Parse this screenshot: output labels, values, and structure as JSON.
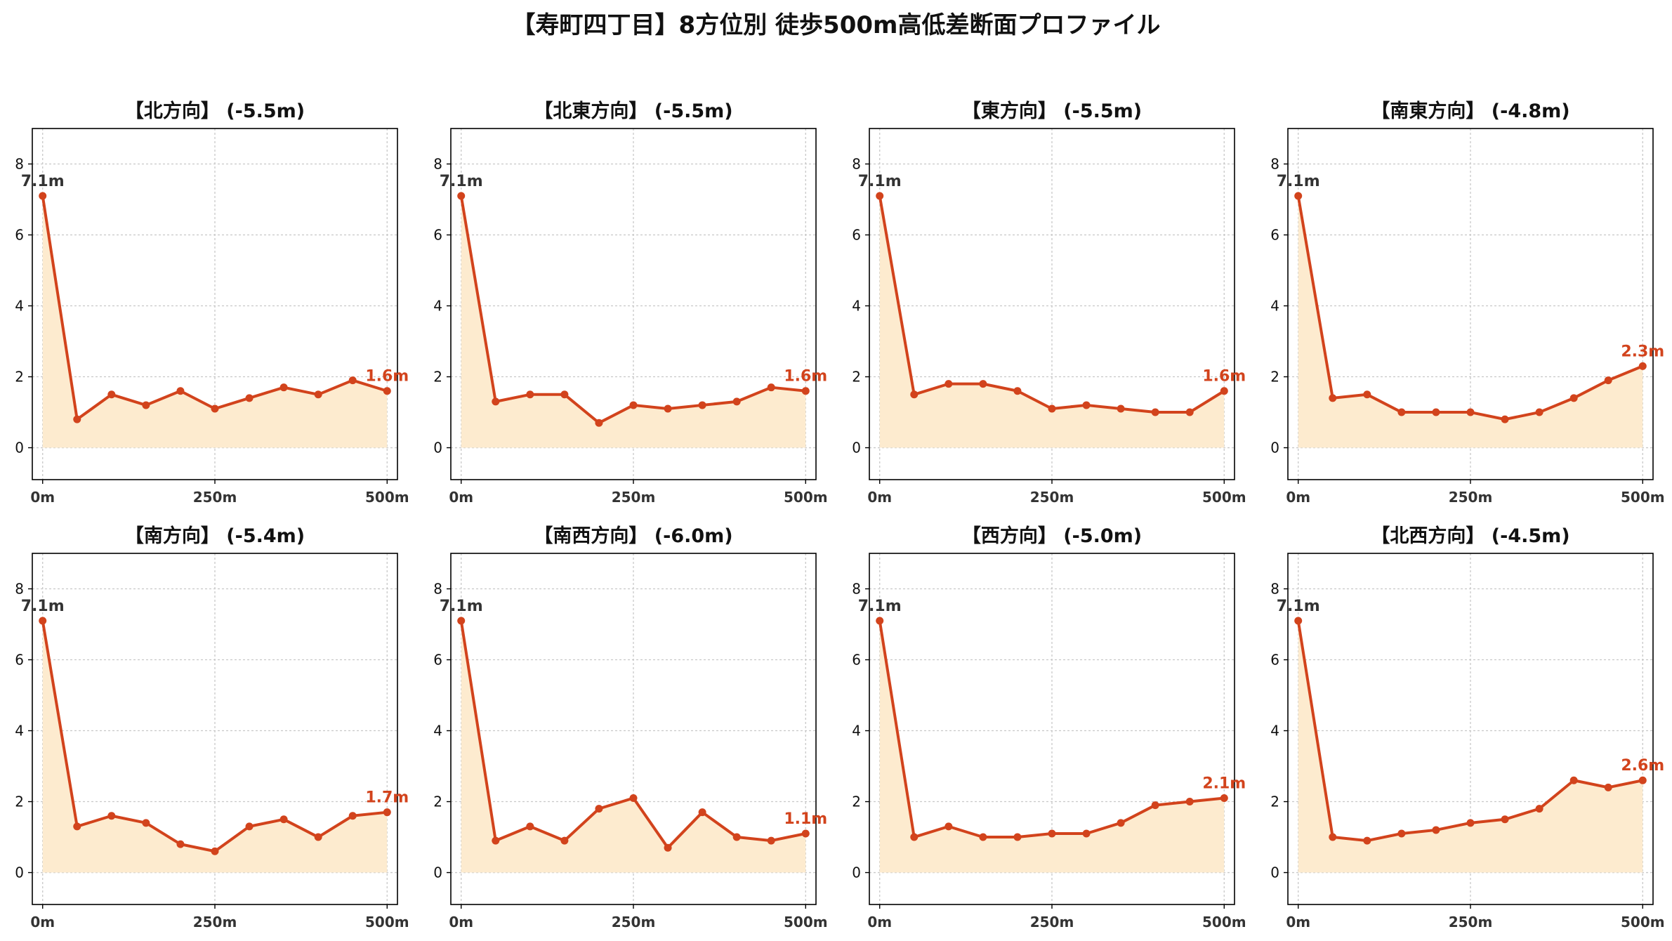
{
  "title": "【寿町四丁目】8方位別 徒歩500m高低差断面プロファイル",
  "colors": {
    "line": "#d2431c",
    "fill": "#fdebcf",
    "start_label": "#333333",
    "end_label": "#d2431c",
    "grid": "#c8c8c8",
    "axis": "#000000"
  },
  "chart_data": [
    {
      "type": "area",
      "title": "【北方向】 (-5.5m)",
      "x": [
        0,
        50,
        100,
        150,
        200,
        250,
        300,
        350,
        400,
        450,
        500
      ],
      "y": [
        7.1,
        0.8,
        1.5,
        1.2,
        1.6,
        1.1,
        1.4,
        1.7,
        1.5,
        1.9,
        1.6
      ],
      "x_ticks": [
        "0m",
        "250m",
        "500m"
      ],
      "y_ticks": [
        0,
        2,
        4,
        6,
        8
      ],
      "xlim": [
        -15,
        515
      ],
      "ylim": [
        -0.9,
        9.0
      ],
      "start_label": "7.1m",
      "end_label": "1.6m",
      "grid": true
    },
    {
      "type": "area",
      "title": "【北東方向】 (-5.5m)",
      "x": [
        0,
        50,
        100,
        150,
        200,
        250,
        300,
        350,
        400,
        450,
        500
      ],
      "y": [
        7.1,
        1.3,
        1.5,
        1.5,
        0.7,
        1.2,
        1.1,
        1.2,
        1.3,
        1.7,
        1.6
      ],
      "x_ticks": [
        "0m",
        "250m",
        "500m"
      ],
      "y_ticks": [
        0,
        2,
        4,
        6,
        8
      ],
      "xlim": [
        -15,
        515
      ],
      "ylim": [
        -0.9,
        9.0
      ],
      "start_label": "7.1m",
      "end_label": "1.6m",
      "grid": true
    },
    {
      "type": "area",
      "title": "【東方向】 (-5.5m)",
      "x": [
        0,
        50,
        100,
        150,
        200,
        250,
        300,
        350,
        400,
        450,
        500
      ],
      "y": [
        7.1,
        1.5,
        1.8,
        1.8,
        1.6,
        1.1,
        1.2,
        1.1,
        1.0,
        1.0,
        1.6
      ],
      "x_ticks": [
        "0m",
        "250m",
        "500m"
      ],
      "y_ticks": [
        0,
        2,
        4,
        6,
        8
      ],
      "xlim": [
        -15,
        515
      ],
      "ylim": [
        -0.9,
        9.0
      ],
      "start_label": "7.1m",
      "end_label": "1.6m",
      "grid": true
    },
    {
      "type": "area",
      "title": "【南東方向】 (-4.8m)",
      "x": [
        0,
        50,
        100,
        150,
        200,
        250,
        300,
        350,
        400,
        450,
        500
      ],
      "y": [
        7.1,
        1.4,
        1.5,
        1.0,
        1.0,
        1.0,
        0.8,
        1.0,
        1.4,
        1.9,
        2.3
      ],
      "x_ticks": [
        "0m",
        "250m",
        "500m"
      ],
      "y_ticks": [
        0,
        2,
        4,
        6,
        8
      ],
      "xlim": [
        -15,
        515
      ],
      "ylim": [
        -0.9,
        9.0
      ],
      "start_label": "7.1m",
      "end_label": "2.3m",
      "grid": true
    },
    {
      "type": "area",
      "title": "【南方向】 (-5.4m)",
      "x": [
        0,
        50,
        100,
        150,
        200,
        250,
        300,
        350,
        400,
        450,
        500
      ],
      "y": [
        7.1,
        1.3,
        1.6,
        1.4,
        0.8,
        0.6,
        1.3,
        1.5,
        1.0,
        1.6,
        1.7
      ],
      "x_ticks": [
        "0m",
        "250m",
        "500m"
      ],
      "y_ticks": [
        0,
        2,
        4,
        6,
        8
      ],
      "xlim": [
        -15,
        515
      ],
      "ylim": [
        -0.9,
        9.0
      ],
      "start_label": "7.1m",
      "end_label": "1.7m",
      "grid": true
    },
    {
      "type": "area",
      "title": "【南西方向】 (-6.0m)",
      "x": [
        0,
        50,
        100,
        150,
        200,
        250,
        300,
        350,
        400,
        450,
        500
      ],
      "y": [
        7.1,
        0.9,
        1.3,
        0.9,
        1.8,
        2.1,
        0.7,
        1.7,
        1.0,
        0.9,
        1.1
      ],
      "x_ticks": [
        "0m",
        "250m",
        "500m"
      ],
      "y_ticks": [
        0,
        2,
        4,
        6,
        8
      ],
      "xlim": [
        -15,
        515
      ],
      "ylim": [
        -0.9,
        9.0
      ],
      "start_label": "7.1m",
      "end_label": "1.1m",
      "grid": true
    },
    {
      "type": "area",
      "title": "【西方向】 (-5.0m)",
      "x": [
        0,
        50,
        100,
        150,
        200,
        250,
        300,
        350,
        400,
        450,
        500
      ],
      "y": [
        7.1,
        1.0,
        1.3,
        1.0,
        1.0,
        1.1,
        1.1,
        1.4,
        1.9,
        2.0,
        2.1
      ],
      "x_ticks": [
        "0m",
        "250m",
        "500m"
      ],
      "y_ticks": [
        0,
        2,
        4,
        6,
        8
      ],
      "xlim": [
        -15,
        515
      ],
      "ylim": [
        -0.9,
        9.0
      ],
      "start_label": "7.1m",
      "end_label": "2.1m",
      "grid": true
    },
    {
      "type": "area",
      "title": "【北西方向】 (-4.5m)",
      "x": [
        0,
        50,
        100,
        150,
        200,
        250,
        300,
        350,
        400,
        450,
        500
      ],
      "y": [
        7.1,
        1.0,
        0.9,
        1.1,
        1.2,
        1.4,
        1.5,
        1.8,
        2.6,
        2.4,
        2.6
      ],
      "x_ticks": [
        "0m",
        "250m",
        "500m"
      ],
      "y_ticks": [
        0,
        2,
        4,
        6,
        8
      ],
      "xlim": [
        -15,
        515
      ],
      "ylim": [
        -0.9,
        9.0
      ],
      "start_label": "7.1m",
      "end_label": "2.6m",
      "grid": true
    }
  ]
}
